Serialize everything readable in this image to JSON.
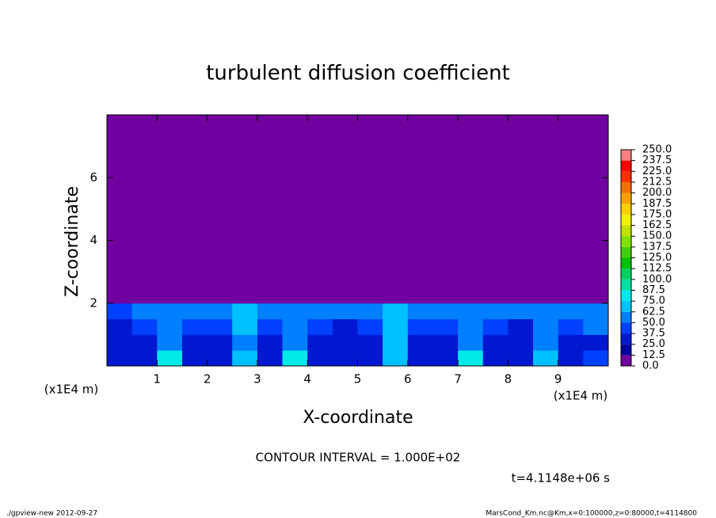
{
  "chart_data": {
    "type": "contour",
    "title": "turbulent diffusion coefficient",
    "x_label": "X-coordinate",
    "y_label": "Z-coordinate",
    "x_unit": "(x1E4 m)",
    "annotation": "CONTOUR INTERVAL = 1.000E+02",
    "time_label": "t=4.1148e+06 s",
    "footer_left": "./gpview-new  2012-09-27",
    "footer_right": "MarsCond_Km.nc@Km,x=0:100000,z=0:80000,t=4114800",
    "xlim": [
      0,
      10
    ],
    "xticks": [
      1,
      2,
      3,
      4,
      5,
      6,
      7,
      8,
      9
    ],
    "ylim": [
      0,
      8
    ],
    "yticks": [
      2,
      4,
      6
    ],
    "x_edges": [
      0,
      0.5,
      1,
      1.5,
      2,
      2.5,
      3,
      3.5,
      4,
      4.5,
      5,
      5.5,
      6,
      6.5,
      7,
      7.5,
      8,
      8.5,
      9,
      9.5,
      10
    ],
    "z_edges": [
      0,
      0.5,
      1,
      1.5,
      2,
      8
    ],
    "values": [
      [
        30,
        35,
        75,
        30,
        25,
        70,
        30,
        75,
        30,
        25,
        30,
        65,
        30,
        25,
        75,
        30,
        25,
        70,
        30,
        40
      ],
      [
        25,
        30,
        60,
        25,
        30,
        55,
        25,
        60,
        25,
        25,
        30,
        70,
        25,
        25,
        60,
        25,
        25,
        55,
        30,
        35
      ],
      [
        35,
        40,
        50,
        40,
        45,
        65,
        40,
        50,
        40,
        35,
        45,
        65,
        40,
        40,
        50,
        40,
        35,
        50,
        45,
        50
      ],
      [
        45,
        50,
        55,
        50,
        60,
        70,
        55,
        55,
        50,
        50,
        60,
        70,
        55,
        50,
        55,
        50,
        50,
        55,
        55,
        60
      ],
      [
        0,
        0,
        0,
        0,
        0,
        0,
        0,
        0,
        0,
        0,
        0,
        0,
        0,
        0,
        0,
        0,
        0,
        0,
        0,
        0
      ]
    ],
    "levels": [
      {
        "value": 0,
        "label": "0.0"
      },
      12.5,
      {
        "value": 25,
        "label": "25.0"
      },
      37.5,
      {
        "value": 50,
        "label": "50.0"
      },
      62.5,
      {
        "value": 75,
        "label": "75.0"
      },
      87.5,
      {
        "value": 100,
        "label": "100.0"
      },
      112.5,
      {
        "value": 125,
        "label": "125.0"
      },
      137.5,
      {
        "value": 150,
        "label": "150.0"
      },
      162.5,
      {
        "value": 175,
        "label": "175.0"
      },
      187.5,
      {
        "value": 200,
        "label": "200.0"
      },
      212.5,
      {
        "value": 225,
        "label": "225.0"
      },
      237.5,
      {
        "value": 250,
        "label": "250.0"
      }
    ],
    "colors": [
      "#7000a0",
      "#0000a0",
      "#0018d0",
      "#0040ff",
      "#0080ff",
      "#00c0ff",
      "#00e8e8",
      "#00e0a0",
      "#00d060",
      "#00c000",
      "#40d000",
      "#80e000",
      "#c0e000",
      "#f0f000",
      "#ffd000",
      "#ffa000",
      "#ff7000",
      "#ff3000",
      "#ff0000",
      "#ff8080"
    ]
  }
}
